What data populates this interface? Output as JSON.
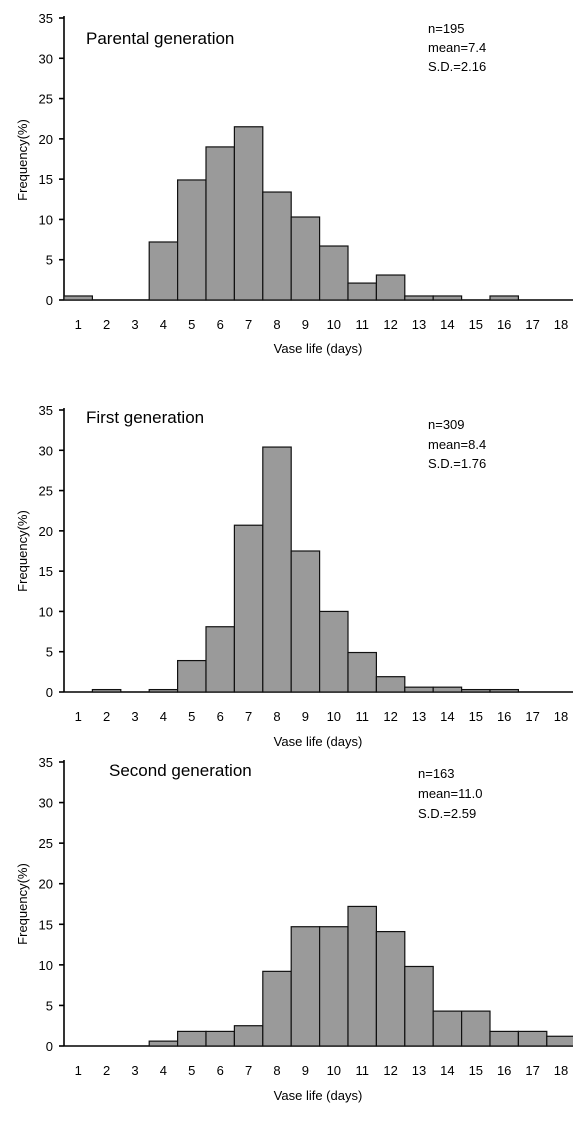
{
  "chart_data": [
    {
      "type": "bar",
      "title": "Parental generation",
      "stats": [
        "n=195",
        "mean=7.4",
        "S.D.=2.16"
      ],
      "xlabel": "Vase life (days)",
      "ylabel": "Frequency(%)",
      "ylim": [
        0,
        35
      ],
      "yticks": [
        "0",
        "5",
        "10",
        "15",
        "20",
        "25",
        "30",
        "35"
      ],
      "categories": [
        "1",
        "2",
        "3",
        "4",
        "5",
        "6",
        "7",
        "8",
        "9",
        "10",
        "11",
        "12",
        "13",
        "14",
        "15",
        "16",
        "17",
        "18"
      ],
      "values": [
        0.5,
        0,
        0,
        7.2,
        14.9,
        19,
        21.5,
        13.4,
        10.3,
        6.7,
        2.1,
        3.1,
        0.5,
        0.5,
        0,
        0.5,
        0,
        0
      ]
    },
    {
      "type": "bar",
      "title": "First generation",
      "stats": [
        "n=309",
        "mean=8.4",
        "S.D.=1.76"
      ],
      "xlabel": "Vase life (days)",
      "ylabel": "Frequency(%)",
      "ylim": [
        0,
        35
      ],
      "yticks": [
        "0",
        "5",
        "10",
        "15",
        "20",
        "25",
        "30",
        "35"
      ],
      "categories": [
        "1",
        "2",
        "3",
        "4",
        "5",
        "6",
        "7",
        "8",
        "9",
        "10",
        "11",
        "12",
        "13",
        "14",
        "15",
        "16",
        "17",
        "18"
      ],
      "values": [
        0,
        0.3,
        0,
        0.3,
        3.9,
        8.1,
        20.7,
        30.4,
        17.5,
        10,
        4.9,
        1.9,
        0.6,
        0.6,
        0.3,
        0.3,
        0,
        0
      ]
    },
    {
      "type": "bar",
      "title": "Second generation",
      "stats": [
        "n=163",
        "mean=11.0",
        "S.D.=2.59"
      ],
      "xlabel": "Vase life (days)",
      "ylabel": "Frequency(%)",
      "ylim": [
        0,
        35
      ],
      "yticks": [
        "0",
        "5",
        "10",
        "15",
        "20",
        "25",
        "30",
        "35"
      ],
      "categories": [
        "1",
        "2",
        "3",
        "4",
        "5",
        "6",
        "7",
        "8",
        "9",
        "10",
        "11",
        "12",
        "13",
        "14",
        "15",
        "16",
        "17",
        "18"
      ],
      "values": [
        0,
        0,
        0,
        0.6,
        1.8,
        1.8,
        2.5,
        9.2,
        14.7,
        14.7,
        17.2,
        14.1,
        9.8,
        4.3,
        4.3,
        1.8,
        1.8,
        1.2
      ]
    }
  ]
}
